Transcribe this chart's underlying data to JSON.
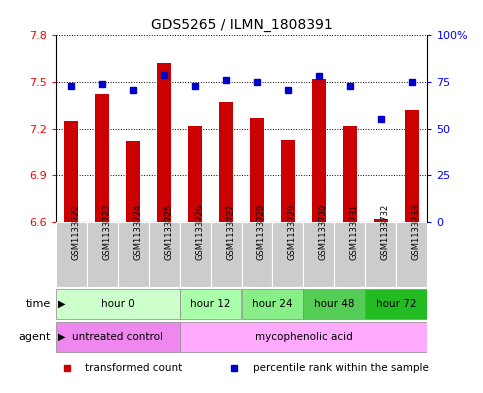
{
  "title": "GDS5265 / ILMN_1808391",
  "samples": [
    "GSM1133722",
    "GSM1133723",
    "GSM1133724",
    "GSM1133725",
    "GSM1133726",
    "GSM1133727",
    "GSM1133728",
    "GSM1133729",
    "GSM1133730",
    "GSM1133731",
    "GSM1133732",
    "GSM1133733"
  ],
  "transformed_count": [
    7.25,
    7.42,
    7.12,
    7.62,
    7.22,
    7.37,
    7.27,
    7.13,
    7.52,
    7.22,
    6.62,
    7.32
  ],
  "percentile_rank": [
    73,
    74,
    71,
    79,
    73,
    76,
    75,
    71,
    78,
    73,
    55,
    75
  ],
  "bar_bottom": 6.6,
  "ylim_left": [
    6.6,
    7.8
  ],
  "ylim_right": [
    0,
    100
  ],
  "yticks_left": [
    6.6,
    6.9,
    7.2,
    7.5,
    7.8
  ],
  "yticks_right": [
    0,
    25,
    50,
    75,
    100
  ],
  "ytick_labels_right": [
    "0",
    "25",
    "50",
    "75",
    "100%"
  ],
  "bar_color": "#cc0000",
  "dot_color": "#0000cc",
  "grid_color": "black",
  "time_groups": [
    {
      "label": "hour 0",
      "start": 0,
      "end": 4,
      "color": "#ccffcc"
    },
    {
      "label": "hour 12",
      "start": 4,
      "end": 6,
      "color": "#aaffaa"
    },
    {
      "label": "hour 24",
      "start": 6,
      "end": 8,
      "color": "#88ee88"
    },
    {
      "label": "hour 48",
      "start": 8,
      "end": 10,
      "color": "#55cc55"
    },
    {
      "label": "hour 72",
      "start": 10,
      "end": 12,
      "color": "#22bb22"
    }
  ],
  "agent_groups": [
    {
      "label": "untreated control",
      "start": 0,
      "end": 4,
      "color": "#ee88ee"
    },
    {
      "label": "mycophenolic acid",
      "start": 4,
      "end": 12,
      "color": "#ffaaff"
    }
  ],
  "legend_items": [
    {
      "color": "#cc0000",
      "label": "transformed count"
    },
    {
      "color": "#0000cc",
      "label": "percentile rank within the sample"
    }
  ],
  "bg_color": "#ffffff",
  "sample_bg_color": "#cccccc",
  "time_label": "time",
  "agent_label": "agent"
}
